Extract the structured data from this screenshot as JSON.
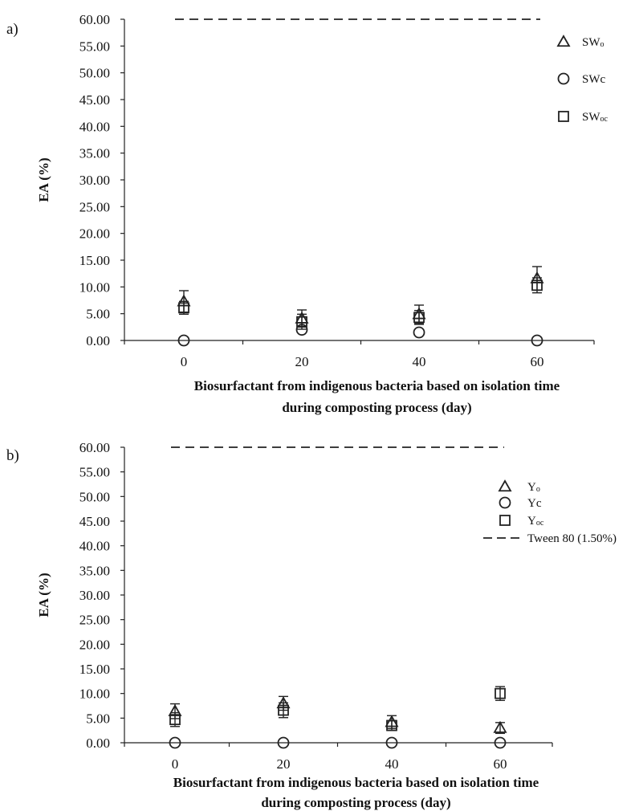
{
  "chart_data": [
    {
      "type": "scatter",
      "panel_label": "a)",
      "xlabel": [
        "Biosurfactant from indigenous bacteria based on isolation time",
        "during composting process (day)"
      ],
      "ylabel": "EA (%)",
      "categories": [
        "0",
        "20",
        "40",
        "60"
      ],
      "ylim": [
        0,
        60
      ],
      "y_ticks": [
        "0.00",
        "5.00",
        "10.00",
        "15.00",
        "20.00",
        "25.00",
        "30.00",
        "35.00",
        "40.00",
        "45.00",
        "50.00",
        "55.00",
        "60.00"
      ],
      "grid": false,
      "legend_position": "top-right",
      "series": [
        {
          "name": "SWo",
          "name_main": "SW",
          "name_sub": "o",
          "marker": "triangle",
          "values": [
            7.3,
            4.1,
            4.9,
            11.6
          ],
          "errors": [
            2.0,
            1.6,
            1.7,
            2.2
          ]
        },
        {
          "name": "SWc",
          "name_main": "SWc",
          "name_sub": "",
          "marker": "circle",
          "values": [
            0.0,
            2.0,
            1.5,
            0.0
          ],
          "errors": [
            0,
            0,
            0,
            0
          ]
        },
        {
          "name": "SWoc",
          "name_main": "SW",
          "name_sub": "oc",
          "marker": "square",
          "values": [
            6.1,
            3.5,
            4.3,
            10.3
          ],
          "errors": [
            1.2,
            1.4,
            1.3,
            1.4
          ]
        }
      ],
      "reference_line": {
        "value": 60.0,
        "style": "dashed"
      }
    },
    {
      "type": "scatter",
      "panel_label": "b)",
      "xlabel": [
        "Biosurfactant from indigenous bacteria based on isolation time",
        "during composting process (day)"
      ],
      "ylabel": "EA (%)",
      "categories": [
        "0",
        "20",
        "40",
        "60"
      ],
      "ylim": [
        0,
        60
      ],
      "y_ticks": [
        "0.00",
        "5.00",
        "10.00",
        "15.00",
        "20.00",
        "25.00",
        "30.00",
        "35.00",
        "40.00",
        "45.00",
        "50.00",
        "55.00",
        "60.00"
      ],
      "grid": false,
      "legend_position": "top-right",
      "series": [
        {
          "name": "Yo",
          "name_main": "Y",
          "name_sub": "o",
          "marker": "triangle",
          "values": [
            6.4,
            8.0,
            4.2,
            3.0
          ],
          "errors": [
            1.5,
            1.4,
            1.3,
            1.1
          ]
        },
        {
          "name": "Yc",
          "name_main": "Yc",
          "name_sub": "",
          "marker": "circle",
          "values": [
            0.0,
            0.0,
            0.0,
            0.0
          ],
          "errors": [
            0,
            0,
            0,
            0
          ]
        },
        {
          "name": "Yoc",
          "name_main": "Y",
          "name_sub": "oc",
          "marker": "square",
          "values": [
            4.7,
            6.6,
            3.5,
            10.0
          ],
          "errors": [
            1.4,
            1.5,
            1.0,
            1.4
          ]
        }
      ],
      "reference_line": {
        "name": "Tween 80 (1.50%)",
        "value": 60.0,
        "style": "dashed"
      }
    }
  ]
}
